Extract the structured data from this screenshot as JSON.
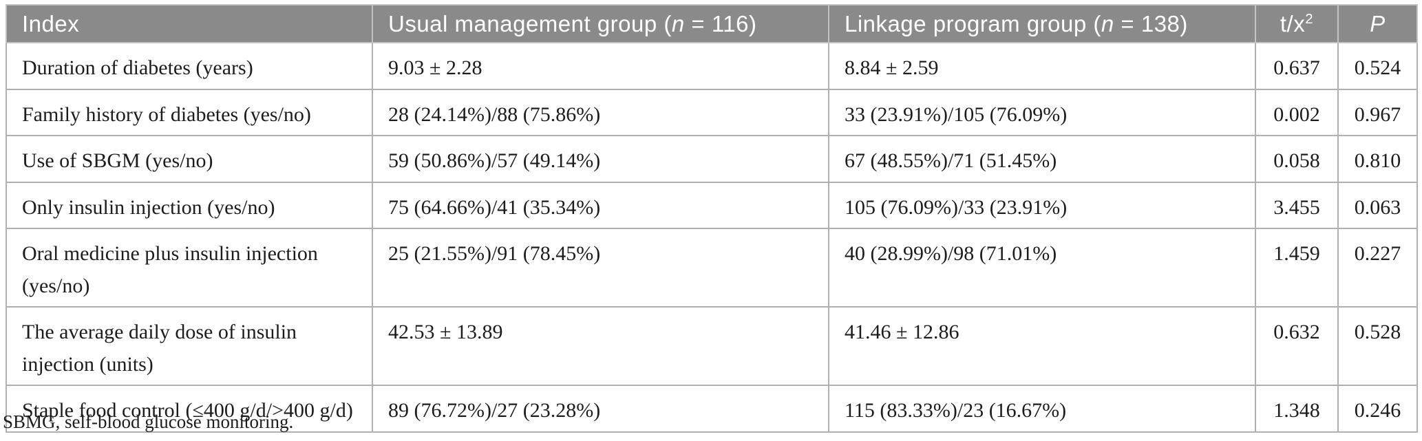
{
  "table": {
    "header": {
      "index": "Index",
      "usual": {
        "prefix": "Usual management group (",
        "n": "n",
        "suffix": " = 116)"
      },
      "linkage": {
        "prefix": "Linkage program group (",
        "n": "n",
        "suffix": " = 138)"
      },
      "stat": {
        "base": "t/x",
        "sup": "2"
      },
      "p": "P"
    },
    "rows": [
      {
        "index": "Duration of diabetes (years)",
        "usual": "9.03 ± 2.28",
        "linkage": "8.84 ± 2.59",
        "stat": "0.637",
        "p": "0.524"
      },
      {
        "index": "Family history of diabetes (yes/no)",
        "usual": "28 (24.14%)/88 (75.86%)",
        "linkage": "33 (23.91%)/105 (76.09%)",
        "stat": "0.002",
        "p": "0.967"
      },
      {
        "index": "Use of SBGM (yes/no)",
        "usual": "59 (50.86%)/57 (49.14%)",
        "linkage": "67 (48.55%)/71 (51.45%)",
        "stat": "0.058",
        "p": "0.810"
      },
      {
        "index": "Only insulin injection (yes/no)",
        "usual": "75 (64.66%)/41 (35.34%)",
        "linkage": "105 (76.09%)/33 (23.91%)",
        "stat": "3.455",
        "p": "0.063"
      },
      {
        "index": "Oral medicine plus insulin injection (yes/no)",
        "usual": "25 (21.55%)/91 (78.45%)",
        "linkage": "40 (28.99%)/98 (71.01%)",
        "stat": "1.459",
        "p": "0.227"
      },
      {
        "index": "The average daily dose of insulin injection (units)",
        "usual": "42.53 ± 13.89",
        "linkage": "41.46 ± 12.86",
        "stat": "0.632",
        "p": "0.528"
      },
      {
        "index": "Staple food control (≤400 g/d/>400 g/d)",
        "usual": "89 (76.72%)/27 (23.28%)",
        "linkage": "115 (83.33%)/23 (16.67%)",
        "stat": "1.348",
        "p": "0.246"
      }
    ],
    "footnote": "SBMG, self-blood glucose monitoring.",
    "colors": {
      "header_bg": "#8a8a8a",
      "header_text": "#ffffff",
      "body_text": "#1c1c1c",
      "grid_border": "#b0b0b0"
    }
  }
}
